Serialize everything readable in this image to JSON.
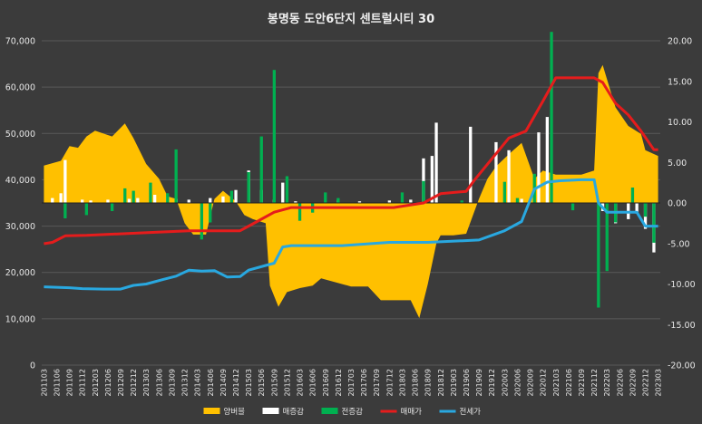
{
  "chart_data": {
    "type": "combo",
    "title": "봉명동 도안6단지 센트럴시티 30",
    "legend_position": "bottom",
    "grid": true,
    "left_axis": {
      "ylim": [
        0,
        70000
      ],
      "ticks": [
        "0",
        "10,000",
        "20,000",
        "30,000",
        "40,000",
        "50,000",
        "60,000",
        "70,000"
      ]
    },
    "right_axis": {
      "ylim": [
        -20,
        20
      ],
      "ticks": [
        "-20.00",
        "-15.00",
        "-10.00",
        "-5.00",
        "0.00",
        "5.00",
        "10.00",
        "15.00",
        "20.00"
      ]
    },
    "x_start": "201103",
    "x_end": "202303",
    "x_tick_labels": [
      "201103",
      "201106",
      "201109",
      "201112",
      "201203",
      "201206",
      "201209",
      "201212",
      "201303",
      "201306",
      "201309",
      "201312",
      "201403",
      "201406",
      "201409",
      "201412",
      "201503",
      "201506",
      "201509",
      "201512",
      "201603",
      "201606",
      "201609",
      "201612",
      "201703",
      "201706",
      "201709",
      "201712",
      "201803",
      "201806",
      "201809",
      "201812",
      "201903",
      "201906",
      "201909",
      "201912",
      "202003",
      "202006",
      "202009",
      "202012",
      "202103",
      "202106",
      "202109",
      "202112",
      "202203",
      "202206",
      "202209",
      "202212",
      "202303"
    ],
    "series": [
      {
        "name": "양버블",
        "kind": "area",
        "axis": "right",
        "color": "#ffc000",
        "points": [
          [
            "201103",
            4.6
          ],
          [
            "201107",
            5.2
          ],
          [
            "201109",
            7.0
          ],
          [
            "201111",
            6.8
          ],
          [
            "201201",
            8.2
          ],
          [
            "201203",
            8.9
          ],
          [
            "201207",
            8.2
          ],
          [
            "201210",
            9.8
          ],
          [
            "201212",
            8.0
          ],
          [
            "201303",
            4.8
          ],
          [
            "201306",
            3.0
          ],
          [
            "201308",
            0.8
          ],
          [
            "201310",
            0.5
          ],
          [
            "201312",
            -2.5
          ],
          [
            "201402",
            -3.9
          ],
          [
            "201405",
            -3.9
          ],
          [
            "201407",
            0.5
          ],
          [
            "201409",
            1.5
          ],
          [
            "201412",
            0.2
          ],
          [
            "201502",
            -1.5
          ],
          [
            "201504",
            -2.0
          ],
          [
            "201507",
            -2.5
          ],
          [
            "201508",
            -10.2
          ],
          [
            "201510",
            -12.8
          ],
          [
            "201512",
            -11.0
          ],
          [
            "201603",
            -10.5
          ],
          [
            "201606",
            -10.2
          ],
          [
            "201608",
            -9.3
          ],
          [
            "201703",
            -10.3
          ],
          [
            "201707",
            -10.3
          ],
          [
            "201710",
            -12.0
          ],
          [
            "201802",
            -12.0
          ],
          [
            "201805",
            -12.0
          ],
          [
            "201807",
            -14.2
          ],
          [
            "201809",
            -10.0
          ],
          [
            "201811",
            -5.0
          ],
          [
            "201812",
            -4.0
          ],
          [
            "201903",
            -4.0
          ],
          [
            "201906",
            -3.8
          ],
          [
            "201909",
            0.5
          ],
          [
            "201911",
            3.0
          ],
          [
            "202001",
            4.5
          ],
          [
            "202004",
            6.0
          ],
          [
            "202007",
            7.4
          ],
          [
            "202010",
            3.0
          ],
          [
            "202012",
            4.0
          ],
          [
            "202103",
            3.5
          ],
          [
            "202106",
            3.5
          ],
          [
            "202109",
            3.5
          ],
          [
            "202112",
            4.0
          ],
          [
            "202201",
            16.0
          ],
          [
            "202202",
            17.0
          ],
          [
            "202205",
            11.8
          ],
          [
            "202208",
            9.5
          ],
          [
            "202211",
            8.5
          ],
          [
            "202212",
            6.5
          ],
          [
            "202303",
            5.8
          ]
        ]
      },
      {
        "name": "매증감",
        "kind": "bar",
        "axis": "right",
        "color": "#ffffff",
        "points": [
          [
            "201105",
            0.6
          ],
          [
            "201107",
            1.2
          ],
          [
            "201108",
            5.3
          ],
          [
            "201112",
            0.4
          ],
          [
            "201202",
            0.3
          ],
          [
            "201206",
            0.4
          ],
          [
            "201211",
            0.5
          ],
          [
            "201301",
            0.6
          ],
          [
            "201305",
            1.0
          ],
          [
            "201308",
            0.8
          ],
          [
            "201310",
            0.5
          ],
          [
            "201401",
            0.4
          ],
          [
            "201406",
            0.6
          ],
          [
            "201409",
            0.8
          ],
          [
            "201412",
            1.6
          ],
          [
            "201503",
            4.0
          ],
          [
            "201506",
            1.6
          ],
          [
            "201509",
            0.4
          ],
          [
            "201511",
            2.5
          ],
          [
            "201602",
            0.2
          ],
          [
            "201612",
            0.3
          ],
          [
            "201705",
            0.2
          ],
          [
            "201712",
            0.3
          ],
          [
            "201805",
            0.4
          ],
          [
            "201808",
            5.5
          ],
          [
            "201810",
            5.8
          ],
          [
            "201811",
            9.9
          ],
          [
            "201907",
            9.4
          ],
          [
            "202001",
            7.5
          ],
          [
            "202004",
            6.5
          ],
          [
            "202007",
            0.5
          ],
          [
            "202011",
            8.7
          ],
          [
            "202101",
            10.6
          ],
          [
            "202202",
            -1.0
          ],
          [
            "202205",
            -2.5
          ],
          [
            "202208",
            -2.0
          ],
          [
            "202210",
            -1.3
          ],
          [
            "202212",
            -3.2
          ],
          [
            "202302",
            -6.1
          ]
        ]
      },
      {
        "name": "전증감",
        "kind": "bar",
        "axis": "right",
        "color": "#00b050",
        "points": [
          [
            "201108",
            -1.9
          ],
          [
            "201201",
            -1.5
          ],
          [
            "201207",
            -1.0
          ],
          [
            "201210",
            1.8
          ],
          [
            "201212",
            1.5
          ],
          [
            "201304",
            2.5
          ],
          [
            "201308",
            1.2
          ],
          [
            "201310",
            6.6
          ],
          [
            "201404",
            -4.5
          ],
          [
            "201406",
            -2.4
          ],
          [
            "201411",
            1.5
          ],
          [
            "201503",
            3.8
          ],
          [
            "201506",
            8.2
          ],
          [
            "201509",
            16.4
          ],
          [
            "201512",
            3.3
          ],
          [
            "201603",
            -2.2
          ],
          [
            "201606",
            -1.2
          ],
          [
            "201609",
            1.3
          ],
          [
            "201612",
            0.6
          ],
          [
            "201803",
            1.3
          ],
          [
            "201808",
            2.7
          ],
          [
            "201905",
            0.3
          ],
          [
            "202003",
            2.6
          ],
          [
            "202006",
            0.6
          ],
          [
            "202010",
            3.6
          ],
          [
            "202102",
            21.1
          ],
          [
            "202107",
            -0.9
          ],
          [
            "202201",
            -12.9
          ],
          [
            "202203",
            -8.4
          ],
          [
            "202205",
            -2.4
          ],
          [
            "202209",
            1.9
          ],
          [
            "202212",
            -1.7
          ],
          [
            "202302",
            -4.9
          ]
        ]
      },
      {
        "name": "매매가",
        "kind": "line",
        "axis": "left",
        "color": "#e51c1c",
        "points": [
          [
            "201103",
            26200
          ],
          [
            "201105",
            26500
          ],
          [
            "201108",
            27900
          ],
          [
            "201201",
            28000
          ],
          [
            "201301",
            28500
          ],
          [
            "201401",
            29000
          ],
          [
            "201501",
            29000
          ],
          [
            "201505",
            31000
          ],
          [
            "201509",
            33000
          ],
          [
            "201601",
            34000
          ],
          [
            "201701",
            34000
          ],
          [
            "201801",
            34000
          ],
          [
            "201808",
            35000
          ],
          [
            "201812",
            37000
          ],
          [
            "201906",
            37500
          ],
          [
            "201908",
            40000
          ],
          [
            "201912",
            44500
          ],
          [
            "202004",
            49000
          ],
          [
            "202008",
            50500
          ],
          [
            "202012",
            57000
          ],
          [
            "202103",
            62000
          ],
          [
            "202106",
            62000
          ],
          [
            "202112",
            62000
          ],
          [
            "202202",
            61000
          ],
          [
            "202205",
            56500
          ],
          [
            "202208",
            54000
          ],
          [
            "202211",
            50500
          ],
          [
            "202302",
            46500
          ],
          [
            "202303",
            46500
          ]
        ]
      },
      {
        "name": "전세가",
        "kind": "line",
        "axis": "left",
        "color": "#29a8e0",
        "points": [
          [
            "201103",
            16900
          ],
          [
            "201109",
            16700
          ],
          [
            "201112",
            16500
          ],
          [
            "201205",
            16400
          ],
          [
            "201209",
            16400
          ],
          [
            "201212",
            17200
          ],
          [
            "201303",
            17500
          ],
          [
            "201307",
            18500
          ],
          [
            "201310",
            19200
          ],
          [
            "201401",
            20500
          ],
          [
            "201404",
            20300
          ],
          [
            "201407",
            20400
          ],
          [
            "201410",
            19000
          ],
          [
            "201501",
            19100
          ],
          [
            "201503",
            20500
          ],
          [
            "201507",
            21500
          ],
          [
            "201509",
            22000
          ],
          [
            "201511",
            25500
          ],
          [
            "201601",
            25800
          ],
          [
            "201701",
            25800
          ],
          [
            "201712",
            26500
          ],
          [
            "201803",
            26500
          ],
          [
            "201809",
            26500
          ],
          [
            "201909",
            27000
          ],
          [
            "201912",
            28000
          ],
          [
            "202003",
            29000
          ],
          [
            "202007",
            31000
          ],
          [
            "202010",
            38000
          ],
          [
            "202101",
            39500
          ],
          [
            "202104",
            39800
          ],
          [
            "202109",
            40000
          ],
          [
            "202112",
            40000
          ],
          [
            "202201",
            35000
          ],
          [
            "202203",
            33000
          ],
          [
            "202210",
            33000
          ],
          [
            "202212",
            30000
          ],
          [
            "202303",
            30000
          ]
        ]
      }
    ]
  }
}
